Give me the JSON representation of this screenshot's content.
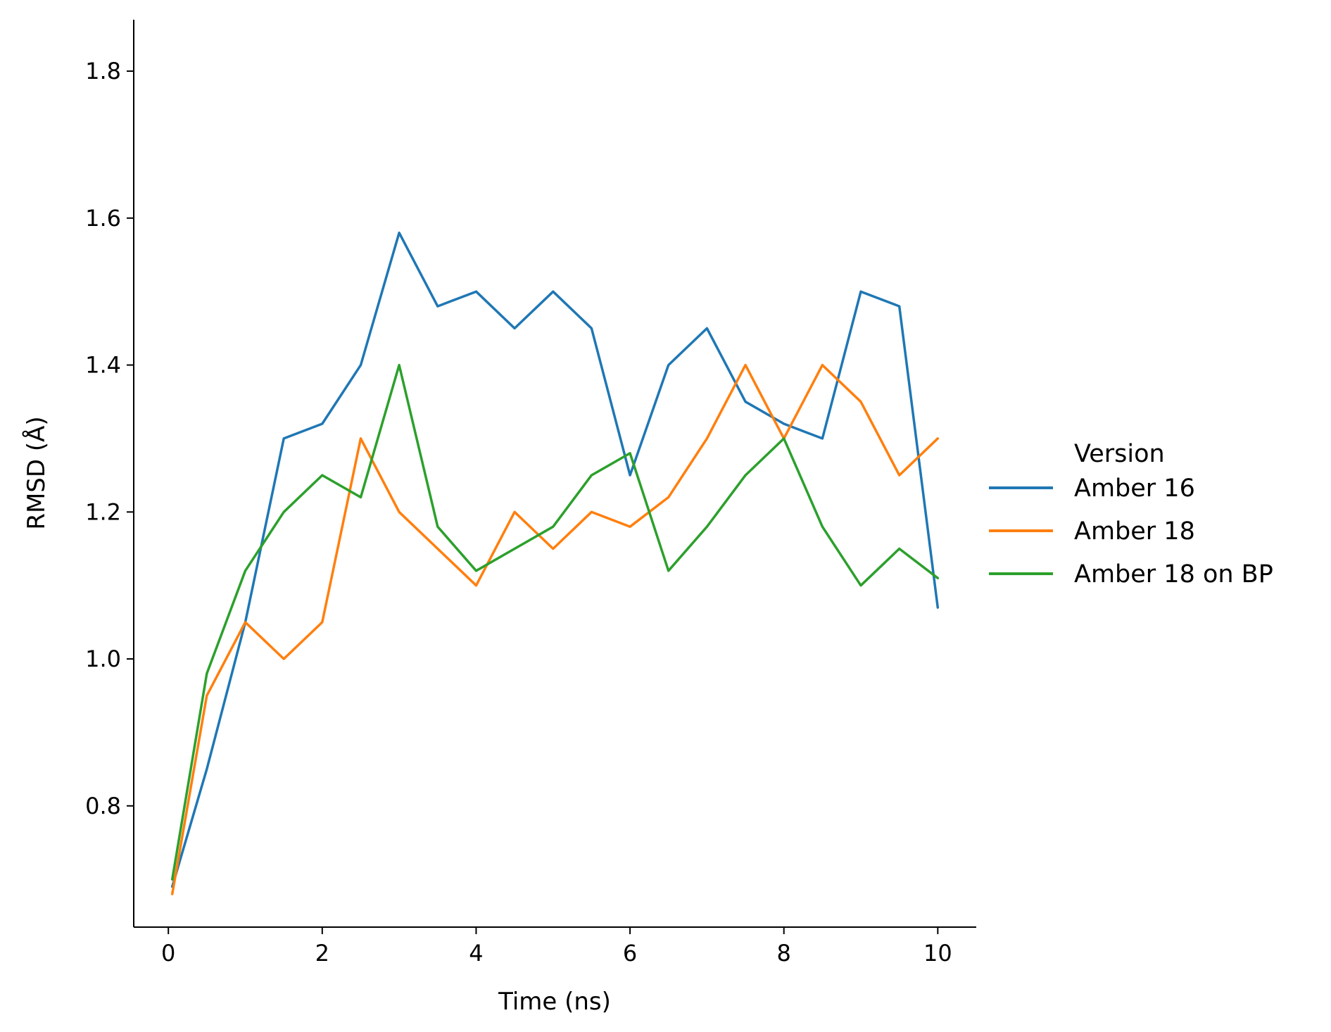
{
  "chart_data": {
    "type": "line",
    "xlabel": "Time (ns)",
    "ylabel": "RMSD (Å)",
    "xlim": [
      -0.45,
      10.5
    ],
    "ylim": [
      0.635,
      1.87
    ],
    "xticks": [
      0,
      2,
      4,
      6,
      8,
      10
    ],
    "yticks": [
      0.8,
      1.0,
      1.2,
      1.4,
      1.6,
      1.8
    ],
    "xtick_labels": [
      "0",
      "2",
      "4",
      "6",
      "8",
      "10"
    ],
    "ytick_labels": [
      "0.8",
      "1.0",
      "1.2",
      "1.4",
      "1.6",
      "1.8"
    ],
    "grid": false,
    "legend": {
      "title": "Version",
      "placement": "right"
    },
    "x": [
      0.05,
      0.5,
      1.0,
      1.5,
      2.0,
      2.5,
      3.0,
      3.5,
      4.0,
      4.5,
      5.0,
      5.5,
      6.0,
      6.5,
      7.0,
      7.5,
      8.0,
      8.5,
      9.0,
      9.5,
      10.0
    ],
    "series": [
      {
        "name": "Amber 16",
        "color": "#1f77b4",
        "values": [
          0.69,
          0.85,
          1.05,
          1.3,
          1.32,
          1.4,
          1.58,
          1.48,
          1.5,
          1.45,
          1.5,
          1.45,
          1.25,
          1.4,
          1.45,
          1.35,
          1.32,
          1.3,
          1.5,
          1.48,
          1.07
        ]
      },
      {
        "name": "Amber 18",
        "color": "#ff7f0e",
        "values": [
          0.68,
          0.95,
          1.05,
          1.0,
          1.05,
          1.3,
          1.2,
          1.15,
          1.1,
          1.2,
          1.15,
          1.2,
          1.18,
          1.22,
          1.3,
          1.4,
          1.3,
          1.4,
          1.35,
          1.25,
          1.3
        ]
      },
      {
        "name": "Amber 18 on BP",
        "color": "#2ca02c",
        "values": [
          0.7,
          0.98,
          1.12,
          1.2,
          1.25,
          1.22,
          1.4,
          1.18,
          1.12,
          1.15,
          1.18,
          1.25,
          1.28,
          1.12,
          1.18,
          1.25,
          1.3,
          1.18,
          1.1,
          1.15,
          1.11
        ]
      }
    ]
  }
}
